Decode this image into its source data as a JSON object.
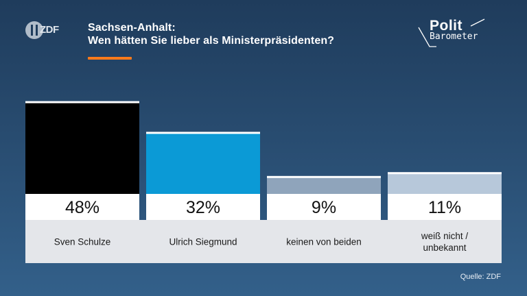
{
  "header": {
    "logo_text": "ZDF",
    "title_line1": "Sachsen-Anhalt:",
    "title_line2": "Wen hätten Sie lieber als Ministerpräsidenten?",
    "brand_line1": "Polit",
    "brand_line2": "Barometer"
  },
  "footer": {
    "source": "Quelle: ZDF"
  },
  "colors": {
    "accent": "#ff7a1a",
    "background": "#2a4f74",
    "label_band": "#e4e6ea"
  },
  "chart_data": {
    "type": "bar",
    "title": "Sachsen-Anhalt: Wen hätten Sie lieber als Ministerpräsidenten?",
    "categories": [
      "Sven Schulze",
      "Ulrich Siegmund",
      "keinen von beiden",
      "weiß nicht / unbekannt"
    ],
    "values": [
      48,
      32,
      9,
      11
    ],
    "value_labels": [
      "48%",
      "32%",
      "9%",
      "11%"
    ],
    "unit": "%",
    "colors": [
      "#000000",
      "#0b9ad6",
      "#8fa4bb",
      "#b7c8da"
    ],
    "ylim": [
      0,
      50
    ],
    "grid": false,
    "legend": "none"
  }
}
